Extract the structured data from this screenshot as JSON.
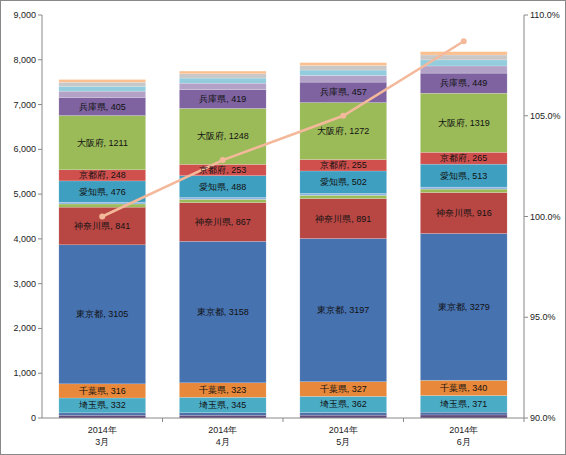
{
  "chart_data": {
    "type": "bar",
    "stacked": true,
    "data_labels": true,
    "grid": false,
    "categories": [
      "2014年\n3月",
      "2014年\n4月",
      "2014年\n5月",
      "2014年\n6月"
    ],
    "ylim": [
      0,
      9000
    ],
    "yticks": [
      0,
      {
        "value": 1000,
        "label": "1,000"
      },
      {
        "value": 2000,
        "label": "2,000"
      },
      {
        "value": 3000,
        "label": "3,000"
      },
      {
        "value": 4000,
        "label": "4,000"
      },
      {
        "value": 5000,
        "label": "5,000"
      },
      {
        "value": 6000,
        "label": "6,000"
      },
      {
        "value": 7000,
        "label": "7,000"
      },
      {
        "value": 8000,
        "label": "8,000"
      },
      {
        "value": 9000,
        "label": "9,000"
      }
    ],
    "y2lim": [
      90,
      110
    ],
    "y2ticks": [
      {
        "value": 90,
        "label": "90.0%"
      },
      {
        "value": 95,
        "label": "95.0%"
      },
      {
        "value": 100,
        "label": "100.0%"
      },
      {
        "value": 105,
        "label": "105.0%"
      },
      {
        "value": 110,
        "label": "110.0%"
      }
    ],
    "series": [
      {
        "color": "#604a7b",
        "values": [
          60,
          61,
          63,
          68
        ]
      },
      {
        "color": "#4f6fa8",
        "values": [
          55,
          57,
          59,
          62
        ]
      },
      {
        "name": "埼玉県",
        "color": "#4bacc6",
        "values": [
          332,
          345,
          362,
          371
        ],
        "value_labels": [
          "埼玉県, 332",
          "埼玉県, 345",
          "埼玉県, 362",
          "埼玉県, 371"
        ]
      },
      {
        "name": "千葉県",
        "color": "#e8883a",
        "values": [
          316,
          323,
          327,
          340
        ],
        "value_labels": [
          "千葉県, 316",
          "千葉県, 323",
          "千葉県, 327",
          "千葉県, 340"
        ]
      },
      {
        "name": "東京都",
        "color": "#4672b0",
        "values": [
          3105,
          3158,
          3197,
          3279
        ],
        "value_labels": [
          "東京都, 3105",
          "東京都, 3158",
          "東京都, 3197",
          "東京都, 3279"
        ]
      },
      {
        "name": "神奈川県",
        "color": "#b84744",
        "values": [
          841,
          867,
          891,
          916
        ],
        "value_labels": [
          "神奈川県, 841",
          "神奈川県, 867",
          "神奈川県, 891",
          "神奈川県, 916"
        ]
      },
      {
        "color": "#9bbb59",
        "values": [
          70,
          72,
          74,
          76
        ]
      },
      {
        "color": "#8eb4e3",
        "values": [
          40,
          41,
          42,
          44
        ]
      },
      {
        "name": "愛知県",
        "color": "#3f9fc0",
        "values": [
          476,
          488,
          502,
          513
        ],
        "value_labels": [
          "愛知県, 476",
          "愛知県, 488",
          "愛知県, 502",
          "愛知県, 513"
        ]
      },
      {
        "name": "京都府",
        "color": "#d0504d",
        "values": [
          248,
          253,
          255,
          265
        ],
        "value_labels": [
          "京都府, 248",
          "京都府, 253",
          "京都府, 255",
          "京都府, 265"
        ]
      },
      {
        "name": "大阪府",
        "color": "#9bbb59",
        "values": [
          1211,
          1248,
          1272,
          1319
        ],
        "value_labels": [
          "大阪府, 1211",
          "大阪府, 1248",
          "大阪府, 1272",
          "大阪府, 1319"
        ]
      },
      {
        "name": "兵庫県",
        "color": "#7e63a0",
        "values": [
          405,
          419,
          457,
          449
        ],
        "value_labels": [
          "兵庫県, 405",
          "兵庫県, 419",
          "兵庫県, 457",
          "兵庫県, 449"
        ]
      },
      {
        "color": "#b3a2c7",
        "values": [
          140,
          145,
          150,
          160
        ]
      },
      {
        "color": "#93cddd",
        "values": [
          110,
          115,
          120,
          135
        ]
      },
      {
        "color": "#c8c8c8",
        "values": [
          90,
          95,
          100,
          110
        ]
      },
      {
        "color": "#fac090",
        "values": [
          60,
          60,
          65,
          75
        ]
      },
      {
        "type": "line",
        "axis": "y2",
        "color": "#f4b99b",
        "marker": "circle",
        "values": [
          100,
          102.8,
          105.0,
          108.7
        ]
      }
    ]
  }
}
